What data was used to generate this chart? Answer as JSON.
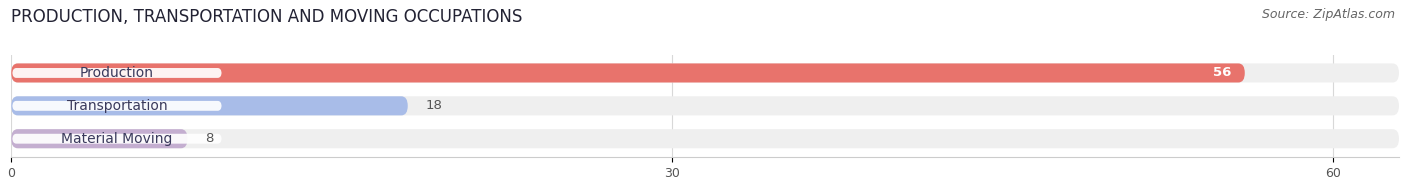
{
  "title": "PRODUCTION, TRANSPORTATION AND MOVING OCCUPATIONS",
  "source": "Source: ZipAtlas.com",
  "categories": [
    "Production",
    "Transportation",
    "Material Moving"
  ],
  "values": [
    56,
    18,
    8
  ],
  "bar_colors": [
    "#e8736c",
    "#a8bce8",
    "#c4aed0"
  ],
  "bar_bg_color": "#efefef",
  "xlim_max": 63,
  "xticks": [
    0,
    30,
    60
  ],
  "title_fontsize": 12,
  "source_fontsize": 9,
  "label_fontsize": 10,
  "value_fontsize": 9.5,
  "bar_height": 0.58,
  "figsize": [
    14.06,
    1.96
  ],
  "dpi": 100
}
